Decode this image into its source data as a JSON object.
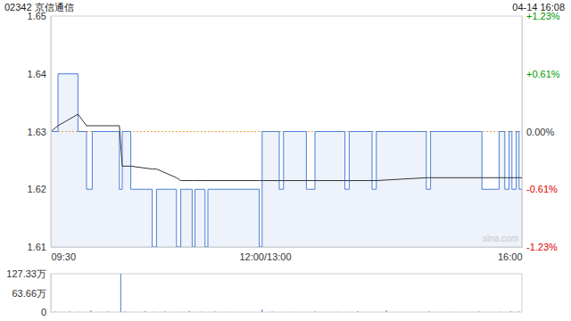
{
  "chart_data": [
    {
      "type": "line",
      "title": "02342 京信通信",
      "subtitle": "04-14 16:08",
      "watermark": "sina.com",
      "prev_close": 1.63,
      "x": [
        0,
        5,
        19,
        25,
        29,
        48,
        50,
        56,
        71,
        74,
        88,
        91,
        99,
        101,
        108,
        110,
        146,
        148,
        160,
        163,
        179,
        185,
        206,
        209,
        225,
        228,
        263,
        266,
        302,
        314,
        318,
        321,
        323,
        326,
        328,
        330
      ],
      "series": [
        {
          "type": "area",
          "color": "#4a7fd6",
          "line_style": "step",
          "values": [
            1.63,
            1.64,
            1.63,
            1.62,
            1.63,
            1.62,
            1.63,
            1.62,
            1.61,
            1.62,
            1.61,
            1.62,
            1.61,
            1.62,
            1.61,
            1.62,
            1.61,
            1.63,
            1.62,
            1.63,
            1.62,
            1.63,
            1.62,
            1.63,
            1.62,
            1.63,
            1.62,
            1.63,
            1.62,
            1.63,
            1.62,
            1.63,
            1.62,
            1.63,
            1.62,
            1.62
          ]
        },
        {
          "type": "line",
          "color": "#333333",
          "line_style": "solid",
          "values": [
            1.63,
            1.631,
            1.633,
            1.631,
            1.631,
            1.631,
            1.624,
            1.624,
            1.6235,
            1.6235,
            1.622,
            1.6215,
            1.6215,
            1.6215,
            1.6215,
            1.6215,
            1.6215,
            1.6215,
            1.6215,
            1.6215,
            1.6215,
            1.6215,
            1.6215,
            1.6215,
            1.6215,
            1.6215,
            1.622,
            1.622,
            1.622,
            1.622,
            1.622,
            1.622,
            1.622,
            1.622,
            1.622,
            1.622
          ]
        }
      ],
      "xlim": [
        0,
        330
      ],
      "xticks": [
        {
          "value": 0,
          "label": "09:30"
        },
        {
          "value": 150,
          "label": "12:00/13:00"
        },
        {
          "value": 330,
          "label": "16:00"
        }
      ],
      "ylim": [
        1.61,
        1.65
      ],
      "yticks": [
        1.61,
        1.62,
        1.63,
        1.64,
        1.65
      ],
      "y2lim": [
        -1.23,
        1.23
      ],
      "y2ticks": [
        {
          "value": -1.23,
          "label": "-1.23%"
        },
        {
          "value": -0.61,
          "label": "-0.61%"
        },
        {
          "value": 0,
          "label": "0.00%"
        },
        {
          "value": 0.61,
          "label": "+0.61%"
        },
        {
          "value": 1.23,
          "label": "+1.23%"
        }
      ],
      "grid": false
    },
    {
      "type": "bar",
      "color": "#6b8fd6",
      "x": [
        0,
        3,
        7,
        13,
        20,
        28,
        35,
        40,
        49,
        52,
        58,
        66,
        72,
        80,
        90,
        97,
        105,
        115,
        125,
        138,
        148,
        155,
        170,
        185,
        200,
        215,
        235,
        250,
        265,
        280,
        300,
        315,
        322,
        328
      ],
      "values": [
        8,
        2,
        1,
        2,
        1,
        6,
        1,
        2,
        127,
        2,
        1,
        3,
        1,
        2,
        1,
        4,
        1,
        2,
        1,
        1,
        9,
        2,
        1,
        2,
        1,
        3,
        6,
        1,
        2,
        1,
        2,
        1,
        3,
        2
      ],
      "xlim": [
        0,
        330
      ],
      "ylim": [
        0,
        127.33
      ],
      "yticks": [
        0,
        {
          "value": 63.66,
          "label": "63.66万"
        },
        {
          "value": 127.33,
          "label": "127.33万"
        }
      ],
      "tick_labels": "y",
      "grid": false
    }
  ]
}
